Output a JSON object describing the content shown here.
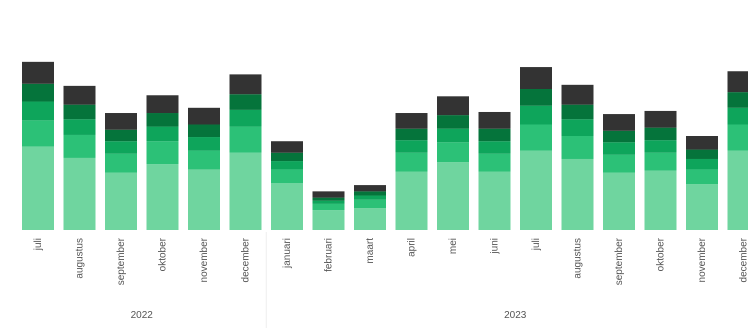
{
  "chart_data": {
    "type": "bar",
    "stacked": true,
    "categories": [
      "juli",
      "augustus",
      "september",
      "oktober",
      "november",
      "december",
      "januari",
      "februari",
      "maart",
      "april",
      "mei",
      "juni",
      "juli",
      "augustus",
      "september",
      "oktober",
      "november",
      "december"
    ],
    "year_groups": [
      {
        "label": "2022",
        "start": 0,
        "end": 5
      },
      {
        "label": "2023",
        "start": 6,
        "end": 17
      }
    ],
    "series": [
      {
        "values": [
          8.0,
          6.9,
          5.5,
          6.3,
          5.8,
          7.4,
          4.5,
          1.9,
          2.1,
          5.6,
          6.5,
          5.6,
          7.6,
          6.8,
          5.5,
          5.7,
          4.4,
          7.6
        ]
      },
      {
        "values": [
          2.5,
          2.2,
          1.8,
          2.2,
          1.8,
          2.5,
          1.3,
          0.6,
          0.8,
          1.8,
          1.9,
          1.7,
          2.5,
          2.2,
          1.7,
          1.7,
          1.4,
          2.5
        ]
      },
      {
        "values": [
          1.8,
          1.5,
          1.2,
          1.4,
          1.3,
          1.6,
          0.8,
          0.3,
          0.4,
          1.2,
          1.3,
          1.2,
          1.8,
          1.6,
          1.2,
          1.2,
          1.0,
          1.6
        ]
      },
      {
        "values": [
          1.7,
          1.4,
          1.1,
          1.3,
          1.2,
          1.5,
          0.8,
          0.3,
          0.4,
          1.1,
          1.3,
          1.2,
          1.6,
          1.4,
          1.1,
          1.2,
          0.9,
          1.5
        ]
      },
      {
        "values": [
          2.1,
          1.8,
          1.6,
          1.7,
          1.6,
          1.9,
          1.1,
          0.6,
          0.6,
          1.5,
          1.8,
          1.6,
          2.1,
          1.9,
          1.6,
          1.6,
          1.3,
          2.0
        ]
      }
    ],
    "colors": [
      "#6fd59f",
      "#2cc177",
      "#0ea55b",
      "#05743b",
      "#333333"
    ],
    "ylim": [
      0,
      18
    ],
    "grid": false,
    "legend": "none",
    "title": "",
    "xlabel": "",
    "ylabel": ""
  }
}
